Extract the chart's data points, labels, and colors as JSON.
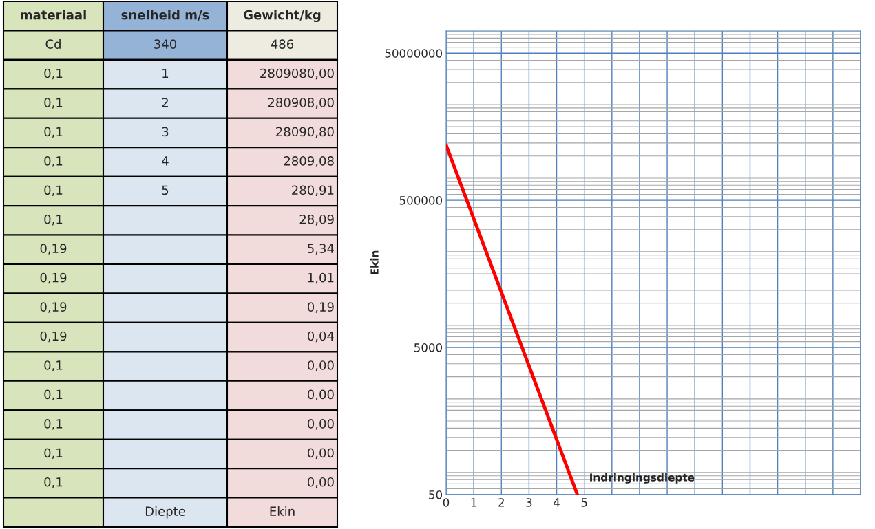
{
  "chart_data": {
    "type": "line",
    "ylabel": "Ekin",
    "series": [
      {
        "x": [
          0,
          1,
          2,
          3,
          4,
          4.75
        ],
        "values": [
          2809080,
          280908,
          28090.8,
          2809.08,
          280.91,
          50
        ],
        "color": "#ff0000"
      }
    ],
    "log": "y",
    "ylim": [
      50,
      100000000
    ],
    "yticks": [
      50,
      5000,
      500000,
      50000000
    ],
    "xlim": [
      0,
      15
    ],
    "xticks": [
      0,
      1,
      2,
      3,
      4,
      5,
      {
        "value": 6,
        "label": null
      },
      {
        "value": 7,
        "label": null
      },
      {
        "value": 8,
        "label": null
      },
      {
        "value": 9,
        "label": null
      },
      {
        "value": 10,
        "label": null
      },
      {
        "value": 11,
        "label": null
      },
      {
        "value": 12,
        "label": null
      },
      {
        "value": 13,
        "label": null
      },
      {
        "value": 14,
        "label": null
      },
      {
        "value": 15,
        "label": null
      }
    ],
    "grid": true,
    "marker": "none",
    "line_style": "solid",
    "annotations": [
      "Indringingsdiepte",
      "materiaal",
      "snelheid m/s",
      "Gewicht/kg",
      "Cd",
      "340",
      "486",
      "0,1",
      "1",
      "2809080,00",
      "0,1",
      "2",
      "280908,00",
      "0,1",
      "3",
      "28090,80",
      "0,1",
      "4",
      "2809,08",
      "0,1",
      "5",
      "280,91",
      "0,1",
      null,
      "28,09",
      "0,19",
      null,
      "5,34",
      "0,19",
      null,
      "1,01",
      "0,19",
      null,
      "0,19",
      "0,19",
      null,
      "0,04",
      "0,1",
      null,
      "0,00",
      "0,1",
      null,
      "0,00",
      "0,1",
      null,
      "0,00",
      "0,1",
      null,
      "0,00",
      "0,1",
      null,
      "0,00",
      null,
      "Diepte",
      "Ekin"
    ]
  }
}
